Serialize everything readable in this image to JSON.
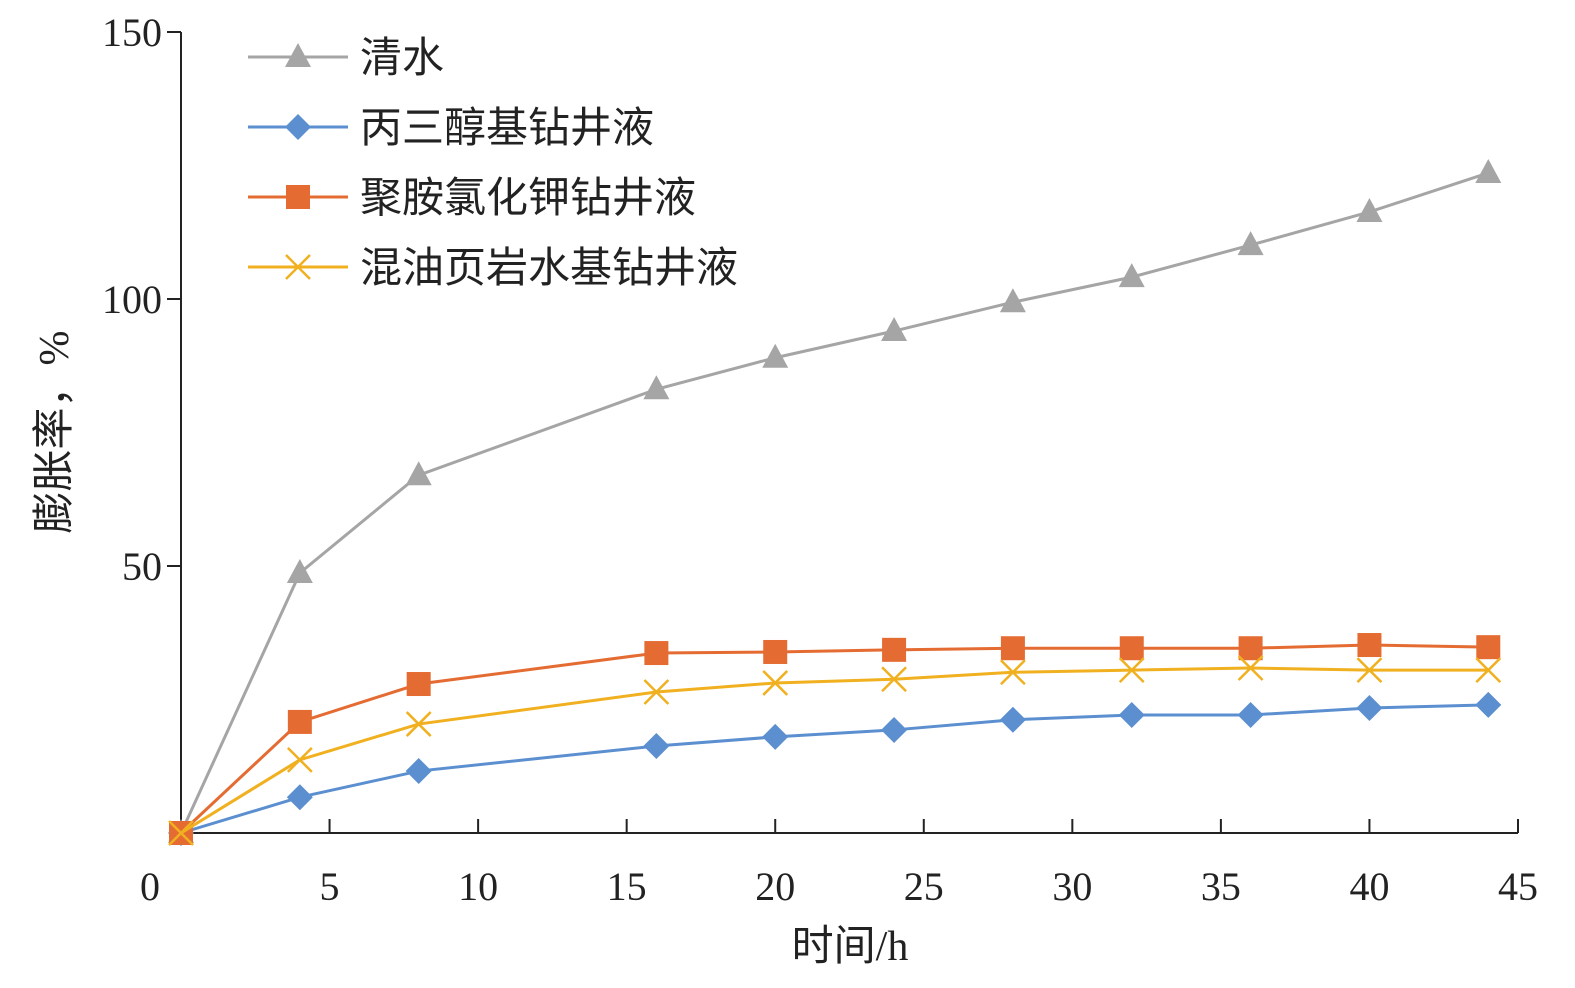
{
  "chart_data": {
    "type": "line",
    "title": "",
    "xlabel": "时间/h",
    "ylabel": "膨胀率，%",
    "xlim": [
      0,
      45
    ],
    "ylim": [
      0,
      150
    ],
    "xticks": [
      0,
      5,
      10,
      15,
      20,
      25,
      30,
      35,
      40,
      45
    ],
    "yticks": [
      50,
      100,
      150
    ],
    "grid": false,
    "legend_position": "top-left",
    "x": [
      0,
      4,
      8,
      16,
      20,
      24,
      28,
      32,
      36,
      40,
      44
    ],
    "series": [
      {
        "name": "清水",
        "color": "#a5a5a5",
        "marker": "triangle",
        "values": [
          0,
          48.7,
          67.0,
          83.1,
          89.0,
          94.0,
          99.4,
          104.1,
          110.1,
          116.3,
          123.6
        ]
      },
      {
        "name": "丙三醇基钻井液",
        "color": "#5b8fd0",
        "marker": "diamond",
        "values": [
          0,
          6.7,
          11.6,
          16.3,
          18.0,
          19.3,
          21.2,
          22.1,
          22.1,
          23.4,
          24.0
        ]
      },
      {
        "name": "聚胺氯化钾钻井液",
        "color": "#e46c32",
        "marker": "square",
        "values": [
          0,
          20.8,
          27.9,
          33.7,
          33.9,
          34.3,
          34.6,
          34.6,
          34.6,
          35.2,
          34.8
        ]
      },
      {
        "name": "混油页岩水基钻井液",
        "color": "#f0b020",
        "marker": "x",
        "values": [
          0,
          13.7,
          20.4,
          26.4,
          28.1,
          28.8,
          30.1,
          30.5,
          30.9,
          30.5,
          30.5
        ]
      }
    ]
  }
}
